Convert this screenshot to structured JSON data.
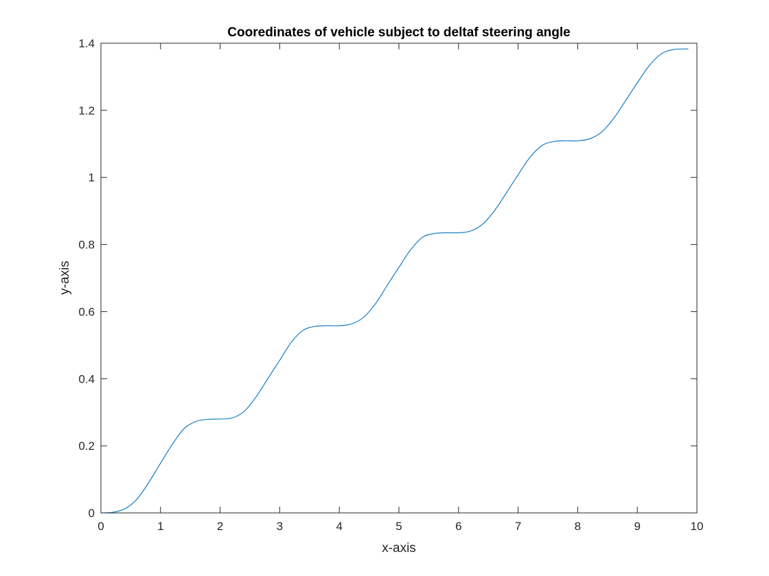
{
  "chart_data": {
    "type": "line",
    "title": "Cooredinates of vehicle subject to deltaf steering angle",
    "xlabel": "x-axis",
    "ylabel": "y-axis",
    "xlim": [
      0,
      10
    ],
    "ylim": [
      0,
      1.4
    ],
    "xticks": [
      0,
      1,
      2,
      3,
      4,
      5,
      6,
      7,
      8,
      9,
      10
    ],
    "yticks": [
      0,
      0.2,
      0.4,
      0.6,
      0.8,
      1,
      1.2,
      1.4
    ],
    "xtick_labels": [
      "0",
      "1",
      "2",
      "3",
      "4",
      "5",
      "6",
      "7",
      "8",
      "9",
      "10"
    ],
    "ytick_labels": [
      "0",
      "0.2",
      "0.4",
      "0.6",
      "0.8",
      "1",
      "1.2",
      "1.4"
    ],
    "grid": false,
    "legend": "none",
    "series": [
      {
        "color": "#0072bd",
        "x": [
          0,
          0.2,
          0.4,
          0.6,
          0.8,
          1.0,
          1.2,
          1.4,
          1.6,
          1.8,
          2.0,
          2.2,
          2.4,
          2.6,
          2.8,
          3.0,
          3.2,
          3.4,
          3.6,
          3.8,
          4.0,
          4.2,
          4.4,
          4.6,
          4.8,
          5.0,
          5.2,
          5.4,
          5.6,
          5.8,
          6.0,
          6.2,
          6.4,
          6.6,
          6.8,
          7.0,
          7.2,
          7.4,
          7.6,
          7.8,
          8.0,
          8.2,
          8.4,
          8.6,
          8.8,
          9.0,
          9.2,
          9.4,
          9.6,
          9.85
        ],
        "y": [
          0,
          0.002,
          0.012,
          0.04,
          0.09,
          0.148,
          0.205,
          0.252,
          0.273,
          0.279,
          0.28,
          0.283,
          0.302,
          0.345,
          0.4,
          0.455,
          0.51,
          0.545,
          0.556,
          0.558,
          0.558,
          0.563,
          0.582,
          0.622,
          0.677,
          0.732,
          0.785,
          0.822,
          0.833,
          0.835,
          0.835,
          0.84,
          0.86,
          0.9,
          0.953,
          1.008,
          1.06,
          1.095,
          1.107,
          1.109,
          1.109,
          1.115,
          1.135,
          1.175,
          1.228,
          1.282,
          1.333,
          1.368,
          1.381,
          1.383
        ]
      }
    ]
  }
}
